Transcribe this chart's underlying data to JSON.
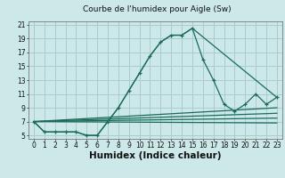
{
  "title": "Courbe de l'humidex pour Aigle (Sw)",
  "xlabel": "Humidex (Indice chaleur)",
  "bg_color": "#cce8e8",
  "grid_color": "#aacccc",
  "line_color": "#1a6b5a",
  "xlim": [
    -0.5,
    23.5
  ],
  "ylim": [
    4.5,
    21.5
  ],
  "xticks": [
    0,
    1,
    2,
    3,
    4,
    5,
    6,
    7,
    8,
    9,
    10,
    11,
    12,
    13,
    14,
    15,
    16,
    17,
    18,
    19,
    20,
    21,
    22,
    23
  ],
  "yticks": [
    5,
    7,
    9,
    11,
    13,
    15,
    17,
    19,
    21
  ],
  "lines": [
    {
      "x": [
        0,
        1,
        2,
        3,
        4,
        5,
        6,
        7,
        8,
        9,
        10,
        11,
        12,
        13,
        14,
        15,
        16,
        17,
        18,
        19,
        20,
        21,
        22,
        23
      ],
      "y": [
        7.0,
        5.5,
        5.5,
        5.5,
        5.5,
        5.0,
        5.0,
        7.0,
        9.0,
        11.5,
        14.0,
        16.5,
        18.5,
        19.5,
        19.5,
        20.5,
        16.0,
        13.0,
        9.5,
        8.5,
        9.5,
        11.0,
        9.5,
        10.5
      ],
      "marker": "+"
    },
    {
      "x": [
        0,
        1,
        2,
        3,
        4,
        5,
        6,
        7,
        8,
        9,
        10,
        11,
        12,
        13,
        14,
        15,
        23
      ],
      "y": [
        7.0,
        5.5,
        5.5,
        5.5,
        5.5,
        5.0,
        5.0,
        7.0,
        9.0,
        11.5,
        14.0,
        16.5,
        18.5,
        19.5,
        19.5,
        20.5,
        10.5
      ],
      "marker": null
    },
    {
      "x": [
        0,
        23
      ],
      "y": [
        7.0,
        9.0
      ],
      "marker": null
    },
    {
      "x": [
        0,
        23
      ],
      "y": [
        7.0,
        8.2
      ],
      "marker": null
    },
    {
      "x": [
        0,
        23
      ],
      "y": [
        7.0,
        7.5
      ],
      "marker": null
    },
    {
      "x": [
        0,
        23
      ],
      "y": [
        7.0,
        6.8
      ],
      "marker": null
    }
  ],
  "title_fontsize": 6.5,
  "tick_fontsize": 5.5,
  "xlabel_fontsize": 7.5
}
